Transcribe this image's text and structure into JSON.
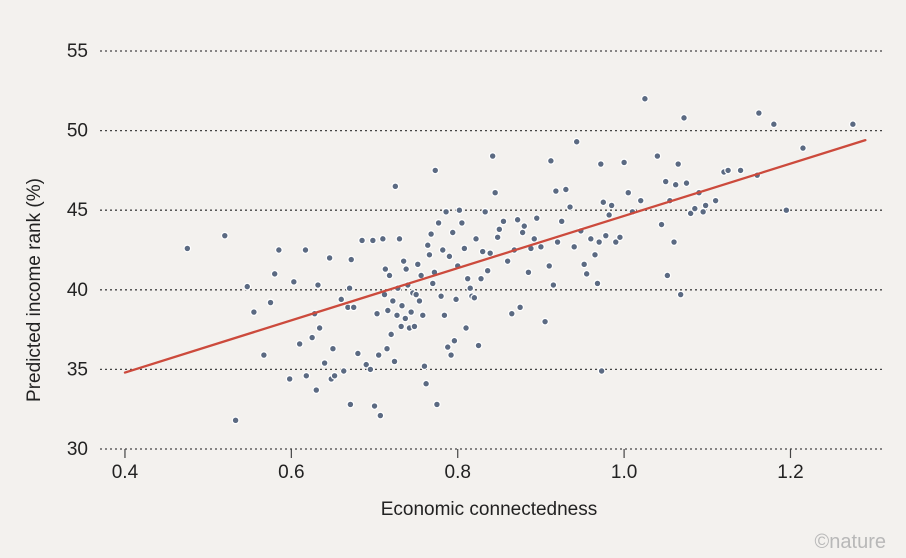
{
  "chart_data": {
    "type": "scatter",
    "title": "",
    "xlabel": "Economic connectedness",
    "ylabel": "Predicted income rank (%)",
    "xlim": [
      0.37,
      1.31
    ],
    "ylim": [
      30,
      55
    ],
    "x_ticks": [
      "0.4",
      "0.6",
      "0.8",
      "1.0",
      "1.2"
    ],
    "y_ticks": [
      "30",
      "35",
      "40",
      "45",
      "50",
      "55"
    ],
    "grid": "horizontal dotted",
    "colors": {
      "points": "#5b6a82",
      "trend_line": "#cc4a3c",
      "grid": "#444444"
    },
    "trend_line": {
      "x": [
        0.4,
        1.29
      ],
      "y": [
        34.8,
        49.4
      ]
    },
    "points": [
      [
        0.475,
        42.6
      ],
      [
        0.52,
        43.4
      ],
      [
        0.533,
        31.8
      ],
      [
        0.547,
        40.2
      ],
      [
        0.555,
        38.6
      ],
      [
        0.567,
        35.9
      ],
      [
        0.575,
        39.2
      ],
      [
        0.58,
        41.0
      ],
      [
        0.585,
        42.5
      ],
      [
        0.598,
        34.4
      ],
      [
        0.603,
        40.5
      ],
      [
        0.61,
        36.6
      ],
      [
        0.617,
        42.5
      ],
      [
        0.618,
        34.6
      ],
      [
        0.625,
        37.0
      ],
      [
        0.628,
        38.5
      ],
      [
        0.63,
        33.7
      ],
      [
        0.632,
        40.3
      ],
      [
        0.634,
        37.6
      ],
      [
        0.64,
        35.4
      ],
      [
        0.646,
        42.0
      ],
      [
        0.648,
        34.4
      ],
      [
        0.65,
        36.3
      ],
      [
        0.652,
        34.6
      ],
      [
        0.66,
        39.4
      ],
      [
        0.663,
        34.9
      ],
      [
        0.668,
        38.9
      ],
      [
        0.67,
        40.1
      ],
      [
        0.671,
        32.8
      ],
      [
        0.672,
        41.9
      ],
      [
        0.675,
        38.9
      ],
      [
        0.68,
        36.0
      ],
      [
        0.685,
        43.1
      ],
      [
        0.69,
        35.3
      ],
      [
        0.695,
        35.0
      ],
      [
        0.698,
        43.1
      ],
      [
        0.7,
        32.7
      ],
      [
        0.703,
        38.5
      ],
      [
        0.705,
        35.9
      ],
      [
        0.707,
        32.1
      ],
      [
        0.71,
        43.2
      ],
      [
        0.712,
        39.7
      ],
      [
        0.713,
        41.3
      ],
      [
        0.715,
        36.3
      ],
      [
        0.716,
        38.7
      ],
      [
        0.718,
        40.9
      ],
      [
        0.72,
        37.2
      ],
      [
        0.722,
        39.3
      ],
      [
        0.724,
        35.5
      ],
      [
        0.725,
        46.5
      ],
      [
        0.727,
        38.4
      ],
      [
        0.728,
        40.1
      ],
      [
        0.73,
        43.2
      ],
      [
        0.732,
        37.7
      ],
      [
        0.733,
        39.0
      ],
      [
        0.735,
        41.8
      ],
      [
        0.737,
        38.2
      ],
      [
        0.738,
        41.3
      ],
      [
        0.74,
        40.3
      ],
      [
        0.742,
        37.6
      ],
      [
        0.744,
        38.6
      ],
      [
        0.746,
        39.8
      ],
      [
        0.748,
        37.7
      ],
      [
        0.75,
        39.7
      ],
      [
        0.752,
        41.6
      ],
      [
        0.754,
        39.3
      ],
      [
        0.756,
        40.9
      ],
      [
        0.758,
        38.4
      ],
      [
        0.76,
        35.2
      ],
      [
        0.762,
        34.1
      ],
      [
        0.764,
        42.8
      ],
      [
        0.766,
        42.2
      ],
      [
        0.768,
        43.5
      ],
      [
        0.77,
        40.4
      ],
      [
        0.772,
        41.1
      ],
      [
        0.773,
        47.5
      ],
      [
        0.775,
        32.8
      ],
      [
        0.777,
        44.2
      ],
      [
        0.78,
        39.6
      ],
      [
        0.782,
        42.5
      ],
      [
        0.784,
        38.4
      ],
      [
        0.786,
        44.9
      ],
      [
        0.788,
        36.4
      ],
      [
        0.79,
        42.1
      ],
      [
        0.792,
        35.9
      ],
      [
        0.794,
        43.6
      ],
      [
        0.796,
        36.8
      ],
      [
        0.798,
        39.4
      ],
      [
        0.8,
        41.5
      ],
      [
        0.802,
        45.0
      ],
      [
        0.805,
        44.2
      ],
      [
        0.808,
        42.6
      ],
      [
        0.81,
        37.6
      ],
      [
        0.812,
        40.7
      ],
      [
        0.815,
        40.1
      ],
      [
        0.817,
        39.6
      ],
      [
        0.82,
        39.5
      ],
      [
        0.822,
        43.2
      ],
      [
        0.825,
        36.5
      ],
      [
        0.828,
        40.7
      ],
      [
        0.83,
        42.4
      ],
      [
        0.833,
        44.9
      ],
      [
        0.836,
        41.2
      ],
      [
        0.839,
        42.3
      ],
      [
        0.842,
        48.4
      ],
      [
        0.845,
        46.1
      ],
      [
        0.848,
        43.3
      ],
      [
        0.85,
        43.8
      ],
      [
        0.855,
        44.3
      ],
      [
        0.86,
        41.8
      ],
      [
        0.865,
        38.5
      ],
      [
        0.868,
        42.5
      ],
      [
        0.872,
        44.4
      ],
      [
        0.875,
        38.9
      ],
      [
        0.878,
        43.6
      ],
      [
        0.88,
        44.0
      ],
      [
        0.885,
        41.1
      ],
      [
        0.888,
        42.6
      ],
      [
        0.892,
        43.2
      ],
      [
        0.895,
        44.5
      ],
      [
        0.9,
        42.7
      ],
      [
        0.905,
        38.0
      ],
      [
        0.91,
        41.5
      ],
      [
        0.912,
        48.1
      ],
      [
        0.915,
        40.3
      ],
      [
        0.918,
        46.2
      ],
      [
        0.92,
        43.0
      ],
      [
        0.925,
        44.3
      ],
      [
        0.93,
        46.3
      ],
      [
        0.935,
        45.2
      ],
      [
        0.94,
        42.7
      ],
      [
        0.943,
        49.3
      ],
      [
        0.948,
        43.7
      ],
      [
        0.952,
        41.6
      ],
      [
        0.955,
        41.0
      ],
      [
        0.96,
        43.2
      ],
      [
        0.965,
        42.2
      ],
      [
        0.968,
        40.4
      ],
      [
        0.97,
        43.0
      ],
      [
        0.972,
        47.9
      ],
      [
        0.973,
        34.9
      ],
      [
        0.975,
        45.5
      ],
      [
        0.978,
        43.4
      ],
      [
        0.982,
        44.7
      ],
      [
        0.985,
        45.3
      ],
      [
        0.99,
        43.0
      ],
      [
        0.995,
        43.3
      ],
      [
        1.0,
        48.0
      ],
      [
        1.005,
        46.1
      ],
      [
        1.01,
        44.9
      ],
      [
        1.02,
        45.6
      ],
      [
        1.025,
        52.0
      ],
      [
        1.04,
        48.4
      ],
      [
        1.045,
        44.1
      ],
      [
        1.05,
        46.8
      ],
      [
        1.052,
        40.9
      ],
      [
        1.055,
        45.6
      ],
      [
        1.06,
        43.0
      ],
      [
        1.062,
        46.6
      ],
      [
        1.065,
        47.9
      ],
      [
        1.068,
        39.7
      ],
      [
        1.072,
        50.8
      ],
      [
        1.075,
        46.7
      ],
      [
        1.08,
        44.8
      ],
      [
        1.085,
        45.1
      ],
      [
        1.09,
        46.1
      ],
      [
        1.095,
        44.9
      ],
      [
        1.098,
        45.3
      ],
      [
        1.11,
        45.6
      ],
      [
        1.12,
        47.4
      ],
      [
        1.125,
        47.5
      ],
      [
        1.14,
        47.5
      ],
      [
        1.16,
        47.2
      ],
      [
        1.162,
        51.1
      ],
      [
        1.18,
        50.4
      ],
      [
        1.195,
        45.0
      ],
      [
        1.215,
        48.9
      ],
      [
        1.275,
        50.4
      ]
    ]
  },
  "credit": "©nature"
}
